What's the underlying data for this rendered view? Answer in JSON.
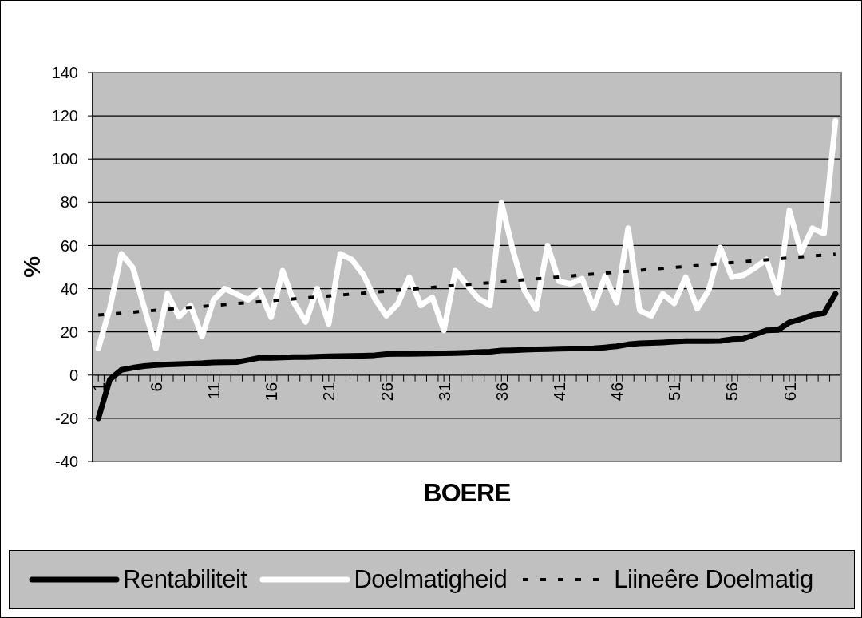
{
  "chart_data": {
    "type": "line",
    "xlabel": "BOERE",
    "ylabel": "%",
    "x": [
      1,
      2,
      3,
      4,
      5,
      6,
      7,
      8,
      9,
      10,
      11,
      12,
      13,
      14,
      15,
      16,
      17,
      18,
      19,
      20,
      21,
      22,
      23,
      24,
      25,
      26,
      27,
      28,
      29,
      30,
      31,
      32,
      33,
      34,
      35,
      36,
      37,
      38,
      39,
      40,
      41,
      42,
      43,
      44,
      45,
      46,
      47,
      48,
      49,
      50,
      51,
      52,
      53,
      54,
      55,
      56,
      57,
      58,
      59,
      60,
      61,
      62,
      63,
      64,
      65
    ],
    "xlim": [
      0.5,
      65.5
    ],
    "xticks": [
      1,
      {
        "value": 1.5,
        "label": null
      },
      {
        "value": 2.5,
        "label": null
      },
      {
        "value": 3.5,
        "label": null
      },
      {
        "value": 4.5,
        "label": null
      },
      {
        "value": 5.5,
        "label": null
      },
      6,
      {
        "value": 6.5,
        "label": null
      },
      {
        "value": 7.5,
        "label": null
      },
      {
        "value": 8.5,
        "label": null
      },
      {
        "value": 9.5,
        "label": null
      },
      {
        "value": 10.5,
        "label": null
      },
      11,
      {
        "value": 11.5,
        "label": null
      },
      {
        "value": 12.5,
        "label": null
      },
      {
        "value": 13.5,
        "label": null
      },
      {
        "value": 14.5,
        "label": null
      },
      {
        "value": 15.5,
        "label": null
      },
      16,
      {
        "value": 16.5,
        "label": null
      },
      {
        "value": 17.5,
        "label": null
      },
      {
        "value": 18.5,
        "label": null
      },
      {
        "value": 19.5,
        "label": null
      },
      {
        "value": 20.5,
        "label": null
      },
      21,
      {
        "value": 21.5,
        "label": null
      },
      {
        "value": 22.5,
        "label": null
      },
      {
        "value": 23.5,
        "label": null
      },
      {
        "value": 24.5,
        "label": null
      },
      {
        "value": 25.5,
        "label": null
      },
      26,
      {
        "value": 26.5,
        "label": null
      },
      {
        "value": 27.5,
        "label": null
      },
      {
        "value": 28.5,
        "label": null
      },
      {
        "value": 29.5,
        "label": null
      },
      {
        "value": 30.5,
        "label": null
      },
      31,
      {
        "value": 31.5,
        "label": null
      },
      {
        "value": 32.5,
        "label": null
      },
      {
        "value": 33.5,
        "label": null
      },
      {
        "value": 34.5,
        "label": null
      },
      {
        "value": 35.5,
        "label": null
      },
      36,
      {
        "value": 36.5,
        "label": null
      },
      {
        "value": 37.5,
        "label": null
      },
      {
        "value": 38.5,
        "label": null
      },
      {
        "value": 39.5,
        "label": null
      },
      {
        "value": 40.5,
        "label": null
      },
      41,
      {
        "value": 41.5,
        "label": null
      },
      {
        "value": 42.5,
        "label": null
      },
      {
        "value": 43.5,
        "label": null
      },
      {
        "value": 44.5,
        "label": null
      },
      {
        "value": 45.5,
        "label": null
      },
      46,
      {
        "value": 46.5,
        "label": null
      },
      {
        "value": 47.5,
        "label": null
      },
      {
        "value": 48.5,
        "label": null
      },
      {
        "value": 49.5,
        "label": null
      },
      {
        "value": 50.5,
        "label": null
      },
      51,
      {
        "value": 51.5,
        "label": null
      },
      {
        "value": 52.5,
        "label": null
      },
      {
        "value": 53.5,
        "label": null
      },
      {
        "value": 54.5,
        "label": null
      },
      {
        "value": 55.5,
        "label": null
      },
      56,
      {
        "value": 56.5,
        "label": null
      },
      {
        "value": 57.5,
        "label": null
      },
      {
        "value": 58.5,
        "label": null
      },
      {
        "value": 59.5,
        "label": null
      },
      {
        "value": 60.5,
        "label": null
      },
      61,
      {
        "value": 61.5,
        "label": null
      },
      {
        "value": 62.5,
        "label": null
      },
      {
        "value": 63.5,
        "label": null
      },
      {
        "value": 64.5,
        "label": null
      }
    ],
    "ylim": [
      -40,
      140
    ],
    "yticks": [
      -40,
      -20,
      0,
      20,
      40,
      60,
      80,
      100,
      120,
      140
    ],
    "grid": "y",
    "legend": "bottom",
    "series": [
      {
        "name": "Rentabiliteit",
        "color": "#000000",
        "values": [
          -20,
          -2,
          2.4,
          3.4,
          4.2,
          4.6,
          4.9,
          5.1,
          5.3,
          5.5,
          5.8,
          5.9,
          6.0,
          7.0,
          8.0,
          8.0,
          8.1,
          8.3,
          8.3,
          8.5,
          8.7,
          8.8,
          8.9,
          9.0,
          9.2,
          9.7,
          9.8,
          9.8,
          9.9,
          10.0,
          10.1,
          10.2,
          10.4,
          10.6,
          10.8,
          11.4,
          11.5,
          11.7,
          11.9,
          12.0,
          12.2,
          12.3,
          12.3,
          12.4,
          12.8,
          13.3,
          14.2,
          14.7,
          14.9,
          15.1,
          15.4,
          15.7,
          15.7,
          15.7,
          15.8,
          16.6,
          16.8,
          18.8,
          20.7,
          20.9,
          24.4,
          25.9,
          27.8,
          28.6,
          37.6
        ]
      },
      {
        "name": "Doelmatigheid",
        "color": "#ffffff",
        "values": [
          12.3,
          31,
          56.1,
          49.6,
          31,
          12.3,
          37.6,
          27.0,
          32.3,
          17.9,
          34.8,
          40.0,
          37.5,
          34.8,
          39.1,
          26.8,
          48.3,
          33.3,
          24.6,
          40.0,
          23.7,
          56.1,
          53.5,
          46.5,
          35.4,
          27.4,
          33.0,
          45.3,
          32.3,
          36.0,
          20.7,
          48.3,
          41.6,
          35.4,
          32.3,
          79.7,
          57.6,
          39.1,
          30.5,
          60.0,
          43.4,
          42.2,
          44.6,
          31.1,
          45.8,
          33.6,
          68.0,
          29.9,
          27.4,
          37.6,
          33.2,
          45.3,
          30.7,
          39.3,
          59.0,
          45.3,
          46.2,
          49.6,
          53.5,
          37.9,
          76.2,
          56.9,
          68.0,
          65.5,
          117.6
        ]
      },
      {
        "name": "Liineêre Doelmatig",
        "color": "#000000",
        "type": "line",
        "line_style": "dotted",
        "x": [
          1,
          65
        ],
        "values": [
          27.8,
          56.0
        ]
      }
    ]
  }
}
